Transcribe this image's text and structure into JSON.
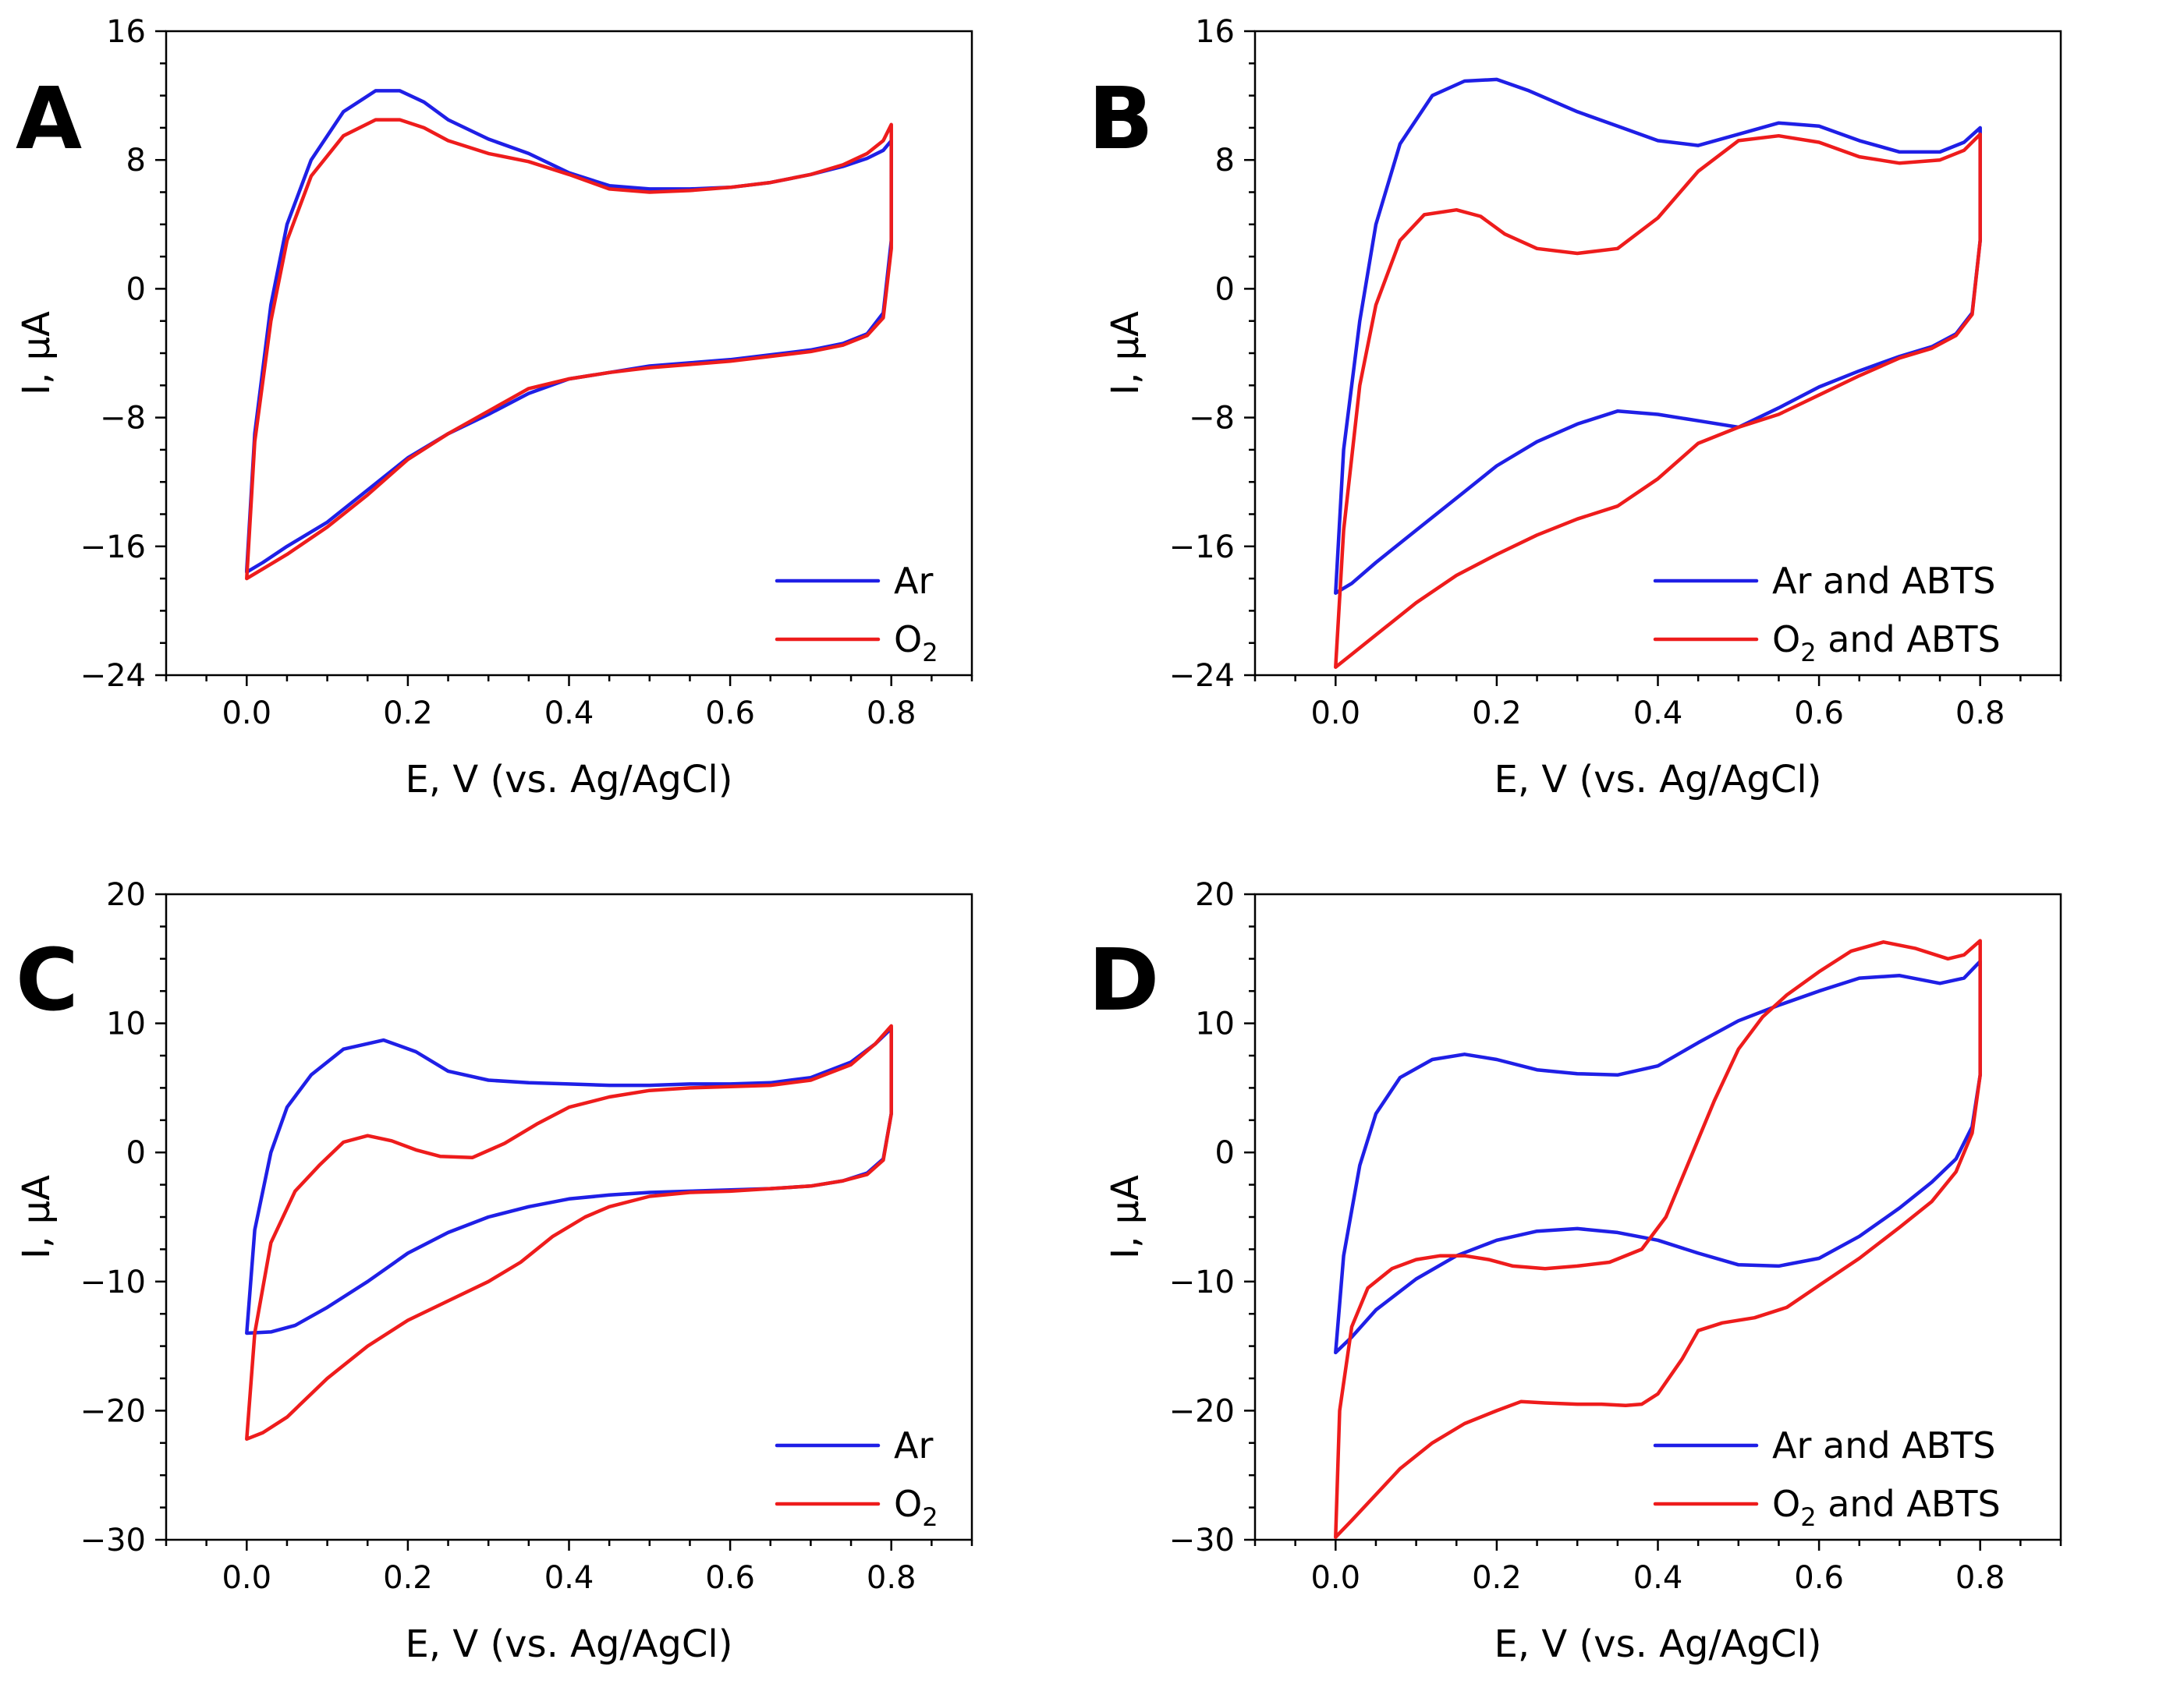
{
  "colors": {
    "blue": "#1f1fe6",
    "red": "#ee1c1c"
  },
  "chart_data": [
    {
      "id": "A",
      "type": "line",
      "panel_label": "A",
      "xlabel": "E, V (vs. Ag/AgCl)",
      "ylabel": "I, μA",
      "xlim": [
        -0.1,
        0.9
      ],
      "ylim": [
        -24,
        16
      ],
      "xticks": [
        "0.0",
        "0.2",
        "0.4",
        "0.6",
        "0.8"
      ],
      "xtick_values": [
        0,
        0.2,
        0.4,
        0.6,
        0.8
      ],
      "yticks": [
        "16",
        "8",
        "0",
        "−8",
        "−16",
        "−24"
      ],
      "ytick_values": [
        16,
        8,
        0,
        -8,
        -16,
        -24
      ],
      "legend_position": "bottom-right",
      "series": [
        {
          "name": "Ar",
          "name_main": "Ar",
          "name_sub": "",
          "name_rest": "",
          "color": "blue",
          "x": [
            0.0,
            0.01,
            0.03,
            0.05,
            0.08,
            0.12,
            0.16,
            0.19,
            0.22,
            0.25,
            0.3,
            0.35,
            0.4,
            0.45,
            0.5,
            0.55,
            0.6,
            0.65,
            0.7,
            0.74,
            0.77,
            0.79,
            0.8,
            0.8,
            0.79,
            0.77,
            0.74,
            0.7,
            0.65,
            0.6,
            0.55,
            0.5,
            0.45,
            0.4,
            0.35,
            0.3,
            0.25,
            0.2,
            0.15,
            0.1,
            0.05,
            0.02,
            0.0
          ],
          "y": [
            -17.5,
            -9,
            -1,
            4,
            8,
            11,
            12.3,
            12.3,
            11.6,
            10.5,
            9.3,
            8.4,
            7.2,
            6.4,
            6.2,
            6.2,
            6.3,
            6.6,
            7.1,
            7.6,
            8.1,
            8.6,
            9.2,
            3,
            -1.5,
            -2.8,
            -3.4,
            -3.8,
            -4.1,
            -4.4,
            -4.6,
            -4.8,
            -5.2,
            -5.6,
            -6.5,
            -7.8,
            -9,
            -10.5,
            -12.5,
            -14.5,
            -16,
            -17,
            -17.6
          ]
        },
        {
          "name": "O2",
          "name_main": "O",
          "name_sub": "2",
          "name_rest": "",
          "color": "red",
          "x": [
            0.0,
            0.01,
            0.03,
            0.05,
            0.08,
            0.12,
            0.16,
            0.19,
            0.22,
            0.25,
            0.3,
            0.35,
            0.4,
            0.45,
            0.5,
            0.55,
            0.6,
            0.65,
            0.7,
            0.74,
            0.77,
            0.79,
            0.8,
            0.8,
            0.79,
            0.77,
            0.74,
            0.7,
            0.65,
            0.6,
            0.55,
            0.5,
            0.45,
            0.4,
            0.35,
            0.3,
            0.25,
            0.2,
            0.15,
            0.1,
            0.05,
            0.02,
            0.0
          ],
          "y": [
            -18,
            -9.5,
            -2,
            3,
            7,
            9.5,
            10.5,
            10.5,
            10,
            9.2,
            8.4,
            7.9,
            7.1,
            6.2,
            6.0,
            6.1,
            6.3,
            6.6,
            7.1,
            7.7,
            8.4,
            9.2,
            10.2,
            2.5,
            -1.8,
            -2.9,
            -3.5,
            -3.9,
            -4.2,
            -4.5,
            -4.7,
            -4.9,
            -5.2,
            -5.6,
            -6.2,
            -7.6,
            -9,
            -10.6,
            -12.8,
            -14.8,
            -16.5,
            -17.4,
            -18
          ]
        }
      ]
    },
    {
      "id": "B",
      "type": "line",
      "panel_label": "B",
      "xlabel": "E, V (vs. Ag/AgCl)",
      "ylabel": "I, μA",
      "xlim": [
        -0.1,
        0.9
      ],
      "ylim": [
        -24,
        16
      ],
      "xticks": [
        "0.0",
        "0.2",
        "0.4",
        "0.6",
        "0.8"
      ],
      "xtick_values": [
        0,
        0.2,
        0.4,
        0.6,
        0.8
      ],
      "yticks": [
        "16",
        "8",
        "0",
        "−8",
        "−16",
        "−24"
      ],
      "ytick_values": [
        16,
        8,
        0,
        -8,
        -16,
        -24
      ],
      "legend_position": "bottom-right",
      "series": [
        {
          "name": "Ar and ABTS",
          "name_main": "Ar and ABTS",
          "name_sub": "",
          "name_rest": "",
          "color": "blue",
          "x": [
            0.0,
            0.01,
            0.03,
            0.05,
            0.08,
            0.12,
            0.16,
            0.2,
            0.24,
            0.3,
            0.35,
            0.4,
            0.45,
            0.5,
            0.55,
            0.6,
            0.65,
            0.7,
            0.75,
            0.78,
            0.8,
            0.8,
            0.79,
            0.77,
            0.74,
            0.7,
            0.65,
            0.6,
            0.55,
            0.5,
            0.45,
            0.4,
            0.35,
            0.3,
            0.25,
            0.2,
            0.15,
            0.1,
            0.05,
            0.02,
            0.0
          ],
          "y": [
            -18.9,
            -10,
            -2,
            4,
            9,
            12,
            12.9,
            13,
            12.3,
            11,
            10.1,
            9.2,
            8.9,
            9.6,
            10.3,
            10.1,
            9.2,
            8.5,
            8.5,
            9.1,
            10,
            3,
            -1.5,
            -2.8,
            -3.6,
            -4.2,
            -5.1,
            -6.1,
            -7.4,
            -8.6,
            -8.2,
            -7.8,
            -7.6,
            -8.4,
            -9.5,
            -11,
            -13,
            -15,
            -17,
            -18.3,
            -18.9
          ]
        },
        {
          "name": "O2 and ABTS",
          "name_main": "O",
          "name_sub": "2",
          "name_rest": " and ABTS",
          "color": "red",
          "x": [
            0.0,
            0.01,
            0.03,
            0.05,
            0.08,
            0.11,
            0.15,
            0.18,
            0.21,
            0.25,
            0.3,
            0.35,
            0.4,
            0.45,
            0.5,
            0.55,
            0.6,
            0.65,
            0.7,
            0.75,
            0.78,
            0.8,
            0.8,
            0.79,
            0.77,
            0.74,
            0.7,
            0.65,
            0.6,
            0.55,
            0.5,
            0.45,
            0.4,
            0.35,
            0.3,
            0.25,
            0.2,
            0.15,
            0.1,
            0.05,
            0.02,
            0.0
          ],
          "y": [
            -23.5,
            -15,
            -6,
            -1,
            3,
            4.6,
            4.9,
            4.5,
            3.4,
            2.5,
            2.2,
            2.5,
            4.4,
            7.3,
            9.2,
            9.5,
            9.1,
            8.2,
            7.8,
            8.0,
            8.6,
            9.6,
            3,
            -1.6,
            -2.9,
            -3.7,
            -4.3,
            -5.4,
            -6.6,
            -7.8,
            -8.6,
            -9.6,
            -11.8,
            -13.5,
            -14.3,
            -15.3,
            -16.5,
            -17.8,
            -19.5,
            -21.5,
            -22.7,
            -23.5
          ]
        }
      ]
    },
    {
      "id": "C",
      "type": "line",
      "panel_label": "C",
      "xlabel": "E, V (vs. Ag/AgCl)",
      "ylabel": "I, μA",
      "xlim": [
        -0.1,
        0.9
      ],
      "ylim": [
        -30,
        20
      ],
      "xticks": [
        "0.0",
        "0.2",
        "0.4",
        "0.6",
        "0.8"
      ],
      "xtick_values": [
        0,
        0.2,
        0.4,
        0.6,
        0.8
      ],
      "yticks": [
        "20",
        "10",
        "0",
        "−10",
        "−20",
        "−30"
      ],
      "ytick_values": [
        20,
        10,
        0,
        -10,
        -20,
        -30
      ],
      "legend_position": "bottom-right",
      "series": [
        {
          "name": "Ar",
          "name_main": "Ar",
          "name_sub": "",
          "name_rest": "",
          "color": "blue",
          "x": [
            0.0,
            0.01,
            0.03,
            0.05,
            0.08,
            0.12,
            0.17,
            0.21,
            0.25,
            0.3,
            0.35,
            0.4,
            0.45,
            0.5,
            0.55,
            0.6,
            0.65,
            0.7,
            0.75,
            0.78,
            0.8,
            0.8,
            0.79,
            0.77,
            0.74,
            0.7,
            0.65,
            0.6,
            0.55,
            0.5,
            0.45,
            0.4,
            0.35,
            0.3,
            0.25,
            0.2,
            0.15,
            0.1,
            0.06,
            0.03,
            0.0
          ],
          "y": [
            -14,
            -6,
            0,
            3.5,
            6,
            8,
            8.7,
            7.8,
            6.3,
            5.6,
            5.4,
            5.3,
            5.2,
            5.2,
            5.3,
            5.3,
            5.4,
            5.8,
            7,
            8.4,
            9.6,
            3,
            -0.5,
            -1.6,
            -2.2,
            -2.6,
            -2.8,
            -2.9,
            -3,
            -3.1,
            -3.3,
            -3.6,
            -4.2,
            -5,
            -6.2,
            -7.8,
            -10,
            -12,
            -13.4,
            -13.9,
            -14
          ]
        },
        {
          "name": "O2",
          "name_main": "O",
          "name_sub": "2",
          "name_rest": "",
          "color": "red",
          "x": [
            0.0,
            0.01,
            0.03,
            0.06,
            0.09,
            0.12,
            0.15,
            0.18,
            0.21,
            0.24,
            0.28,
            0.32,
            0.36,
            0.4,
            0.45,
            0.5,
            0.55,
            0.6,
            0.65,
            0.7,
            0.75,
            0.78,
            0.8,
            0.8,
            0.79,
            0.77,
            0.74,
            0.7,
            0.65,
            0.6,
            0.55,
            0.5,
            0.45,
            0.42,
            0.38,
            0.34,
            0.3,
            0.25,
            0.2,
            0.15,
            0.1,
            0.05,
            0.02,
            0.0
          ],
          "y": [
            -22.2,
            -14,
            -7,
            -3,
            -1,
            0.8,
            1.3,
            0.9,
            0.2,
            -0.3,
            -0.4,
            0.7,
            2.2,
            3.5,
            4.3,
            4.8,
            5,
            5.1,
            5.2,
            5.6,
            6.8,
            8.4,
            9.8,
            3,
            -0.6,
            -1.7,
            -2.2,
            -2.6,
            -2.8,
            -3,
            -3.1,
            -3.4,
            -4.2,
            -5,
            -6.5,
            -8.5,
            -10,
            -11.5,
            -13,
            -15,
            -17.5,
            -20.5,
            -21.7,
            -22.2
          ]
        }
      ]
    },
    {
      "id": "D",
      "type": "line",
      "panel_label": "D",
      "xlabel": "E, V (vs. Ag/AgCl)",
      "ylabel": "I, μA",
      "xlim": [
        -0.1,
        0.9
      ],
      "ylim": [
        -30,
        20
      ],
      "xticks": [
        "0.0",
        "0.2",
        "0.4",
        "0.6",
        "0.8"
      ],
      "xtick_values": [
        0,
        0.2,
        0.4,
        0.6,
        0.8
      ],
      "yticks": [
        "20",
        "10",
        "0",
        "−10",
        "−20",
        "−30"
      ],
      "ytick_values": [
        20,
        10,
        0,
        -10,
        -20,
        -30
      ],
      "legend_position": "bottom-right",
      "series": [
        {
          "name": "Ar and ABTS",
          "name_main": "Ar and ABTS",
          "name_sub": "",
          "name_rest": "",
          "color": "blue",
          "x": [
            0.0,
            0.01,
            0.03,
            0.05,
            0.08,
            0.12,
            0.16,
            0.2,
            0.25,
            0.3,
            0.35,
            0.4,
            0.45,
            0.5,
            0.55,
            0.6,
            0.65,
            0.7,
            0.75,
            0.78,
            0.8,
            0.8,
            0.79,
            0.77,
            0.74,
            0.7,
            0.65,
            0.6,
            0.55,
            0.5,
            0.45,
            0.4,
            0.35,
            0.3,
            0.25,
            0.2,
            0.15,
            0.1,
            0.05,
            0.02,
            0.0
          ],
          "y": [
            -15.5,
            -8,
            -1,
            3,
            5.8,
            7.2,
            7.6,
            7.2,
            6.4,
            6.1,
            6,
            6.7,
            8.5,
            10.2,
            11.4,
            12.5,
            13.5,
            13.7,
            13.1,
            13.5,
            14.8,
            6,
            2,
            -0.5,
            -2.3,
            -4.3,
            -6.5,
            -8.2,
            -8.8,
            -8.7,
            -7.8,
            -6.8,
            -6.2,
            -5.9,
            -6.1,
            -6.8,
            -8,
            -9.8,
            -12.2,
            -14.3,
            -15.5
          ]
        },
        {
          "name": "O2 and ABTS",
          "name_main": "O",
          "name_sub": "2",
          "name_rest": " and ABTS",
          "color": "red",
          "x": [
            0.0,
            0.005,
            0.02,
            0.04,
            0.07,
            0.1,
            0.13,
            0.16,
            0.19,
            0.22,
            0.26,
            0.3,
            0.34,
            0.38,
            0.41,
            0.44,
            0.47,
            0.5,
            0.53,
            0.56,
            0.6,
            0.64,
            0.68,
            0.72,
            0.76,
            0.78,
            0.8,
            0.8,
            0.79,
            0.77,
            0.74,
            0.7,
            0.65,
            0.6,
            0.56,
            0.52,
            0.48,
            0.45,
            0.43,
            0.4,
            0.38,
            0.36,
            0.33,
            0.3,
            0.26,
            0.23,
            0.2,
            0.16,
            0.12,
            0.08,
            0.05,
            0.02,
            0.0
          ],
          "y": [
            -29.8,
            -20,
            -13.5,
            -10.5,
            -9,
            -8.3,
            -8,
            -8,
            -8.3,
            -8.8,
            -9,
            -8.8,
            -8.5,
            -7.5,
            -5,
            -0.5,
            4,
            8,
            10.5,
            12.2,
            14,
            15.6,
            16.3,
            15.8,
            15,
            15.3,
            16.4,
            6,
            1.5,
            -1.5,
            -3.8,
            -5.8,
            -8.2,
            -10.3,
            -12,
            -12.8,
            -13.2,
            -13.8,
            -16,
            -18.7,
            -19.5,
            -19.6,
            -19.5,
            -19.5,
            -19.4,
            -19.3,
            -20,
            -21,
            -22.5,
            -24.5,
            -26.5,
            -28.5,
            -29.8
          ]
        }
      ]
    }
  ]
}
